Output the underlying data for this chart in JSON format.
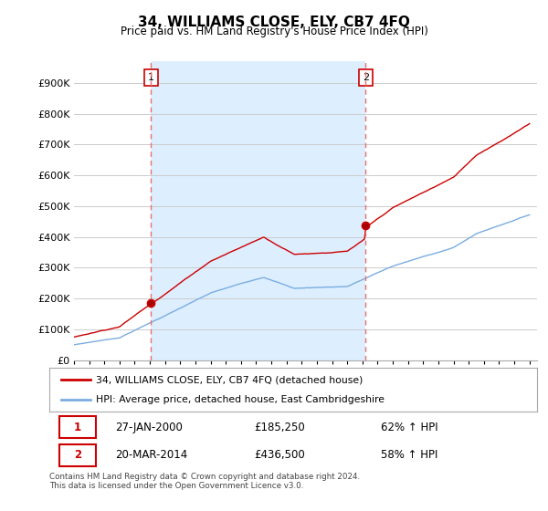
{
  "title": "34, WILLIAMS CLOSE, ELY, CB7 4FQ",
  "subtitle": "Price paid vs. HM Land Registry's House Price Index (HPI)",
  "yticks": [
    0,
    100000,
    200000,
    300000,
    400000,
    500000,
    600000,
    700000,
    800000,
    900000
  ],
  "ylim": [
    0,
    970000
  ],
  "sale1_date_num": 2000.07,
  "sale1_price": 185250,
  "sale1_label": "27-JAN-2000",
  "sale1_pct": "62% ↑ HPI",
  "sale2_date_num": 2014.22,
  "sale2_price": 436500,
  "sale2_label": "20-MAR-2014",
  "sale2_pct": "58% ↑ HPI",
  "red_line_color": "#cc0000",
  "blue_line_color": "#7aade0",
  "dashed_red_color": "#e87070",
  "shade_color": "#ddeeff",
  "legend_label1": "34, WILLIAMS CLOSE, ELY, CB7 4FQ (detached house)",
  "legend_label2": "HPI: Average price, detached house, East Cambridgeshire",
  "footnote": "Contains HM Land Registry data © Crown copyright and database right 2024.\nThis data is licensed under the Open Government Licence v3.0.",
  "background_color": "#ffffff",
  "plot_bg_color": "#ffffff",
  "grid_color": "#cccccc",
  "xlim_left": 1995.0,
  "xlim_right": 2025.5
}
